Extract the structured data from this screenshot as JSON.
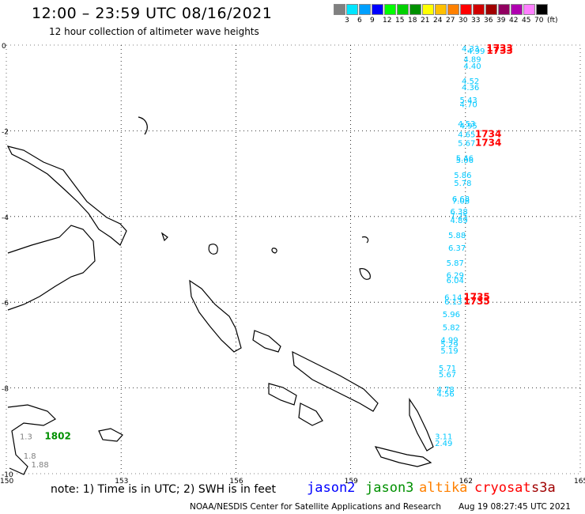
{
  "title": "12:00 – 23:59 UTC 08/16/2021",
  "subtitle": "12 hour collection of altimeter wave heights",
  "scale": {
    "colors": [
      "#808080",
      "#00e5ff",
      "#00a0ff",
      "#0000ff",
      "#00ff00",
      "#00d000",
      "#009000",
      "#ffff00",
      "#ffc000",
      "#ff8000",
      "#ff0000",
      "#d00000",
      "#a00000",
      "#900060",
      "#b000b0",
      "#ff80ff",
      "#000000"
    ],
    "labels": [
      "3",
      "6",
      "9",
      "12",
      "15",
      "18",
      "21",
      "24",
      "27",
      "30",
      "33",
      "36",
      "39",
      "42",
      "45",
      "70",
      "(ft)"
    ]
  },
  "axes": {
    "lat_labels": [
      "0",
      "-2",
      "-4",
      "-6",
      "-8",
      "-10"
    ],
    "lon_labels": [
      "150",
      "153",
      "156",
      "159",
      "162",
      "165"
    ]
  },
  "observations": [
    {
      "text": "4.33",
      "color": "#00c8ff",
      "lon": 161.9,
      "lat": -0.15
    },
    {
      "text": "4.99",
      "color": "#00c8ff",
      "lon": 162.05,
      "lat": -0.2
    },
    {
      "text": "4.89",
      "color": "#00c8ff",
      "lon": 161.95,
      "lat": -0.4
    },
    {
      "text": "4.40",
      "color": "#00c8ff",
      "lon": 161.95,
      "lat": -0.55
    },
    {
      "text": "4.52",
      "color": "#00c8ff",
      "lon": 161.9,
      "lat": -0.9
    },
    {
      "text": "4.36",
      "color": "#00c8ff",
      "lon": 161.9,
      "lat": -1.05
    },
    {
      "text": "5.43",
      "color": "#00c8ff",
      "lon": 161.85,
      "lat": -1.35
    },
    {
      "text": "4.70",
      "color": "#00c8ff",
      "lon": 161.85,
      "lat": -1.45
    },
    {
      "text": "4.53",
      "color": "#00c8ff",
      "lon": 161.8,
      "lat": -1.9
    },
    {
      "text": "4.95",
      "color": "#00c8ff",
      "lon": 161.85,
      "lat": -1.95
    },
    {
      "text": "4.65",
      "color": "#00c8ff",
      "lon": 161.8,
      "lat": -2.15
    },
    {
      "text": "5.67",
      "color": "#00c8ff",
      "lon": 161.8,
      "lat": -2.35
    },
    {
      "text": "5.46",
      "color": "#00c8ff",
      "lon": 161.75,
      "lat": -2.7
    },
    {
      "text": "5.06",
      "color": "#00c8ff",
      "lon": 161.75,
      "lat": -2.75
    },
    {
      "text": "5.86",
      "color": "#00c8ff",
      "lon": 161.7,
      "lat": -3.1
    },
    {
      "text": "5.78",
      "color": "#00c8ff",
      "lon": 161.7,
      "lat": -3.28
    },
    {
      "text": "6.68",
      "color": "#00c8ff",
      "lon": 161.65,
      "lat": -3.65
    },
    {
      "text": "7.08",
      "color": "#00c8ff",
      "lon": 161.65,
      "lat": -3.7
    },
    {
      "text": "6.38",
      "color": "#00c8ff",
      "lon": 161.6,
      "lat": -3.95
    },
    {
      "text": "7.25",
      "color": "#00c8ff",
      "lon": 161.6,
      "lat": -4.05
    },
    {
      "text": "4.89",
      "color": "#00c8ff",
      "lon": 161.6,
      "lat": -4.15
    },
    {
      "text": "5.88",
      "color": "#00c8ff",
      "lon": 161.55,
      "lat": -4.5
    },
    {
      "text": "6.37",
      "color": "#00c8ff",
      "lon": 161.55,
      "lat": -4.8
    },
    {
      "text": "5.87",
      "color": "#00c8ff",
      "lon": 161.5,
      "lat": -5.15
    },
    {
      "text": "6.29",
      "color": "#00c8ff",
      "lon": 161.5,
      "lat": -5.43
    },
    {
      "text": "6.04",
      "color": "#00c8ff",
      "lon": 161.5,
      "lat": -5.55
    },
    {
      "text": "6.14",
      "color": "#00c8ff",
      "lon": 161.45,
      "lat": -5.95
    },
    {
      "text": "6.13",
      "color": "#00c8ff",
      "lon": 161.45,
      "lat": -6.05
    },
    {
      "text": "5.96",
      "color": "#00c8ff",
      "lon": 161.4,
      "lat": -6.35
    },
    {
      "text": "5.82",
      "color": "#00c8ff",
      "lon": 161.4,
      "lat": -6.65
    },
    {
      "text": "4.99",
      "color": "#00c8ff",
      "lon": 161.35,
      "lat": -6.95
    },
    {
      "text": "5.29",
      "color": "#00c8ff",
      "lon": 161.35,
      "lat": -7.05
    },
    {
      "text": "5.19",
      "color": "#00c8ff",
      "lon": 161.35,
      "lat": -7.2
    },
    {
      "text": "5.71",
      "color": "#00c8ff",
      "lon": 161.3,
      "lat": -7.6
    },
    {
      "text": "5.67",
      "color": "#00c8ff",
      "lon": 161.3,
      "lat": -7.75
    },
    {
      "text": "4.78",
      "color": "#00c8ff",
      "lon": 161.25,
      "lat": -8.1
    },
    {
      "text": "4.56",
      "color": "#00c8ff",
      "lon": 161.25,
      "lat": -8.2
    },
    {
      "text": "3.11",
      "color": "#00c8ff",
      "lon": 161.2,
      "lat": -9.2
    },
    {
      "text": "2.49",
      "color": "#00c8ff",
      "lon": 161.2,
      "lat": -9.35
    },
    {
      "text": "1733",
      "color": "#ff0000",
      "lon": 162.55,
      "lat": -0.15
    },
    {
      "text": "1733",
      "color": "#ff0000",
      "lon": 162.55,
      "lat": -0.2
    },
    {
      "text": "1734",
      "color": "#ff0000",
      "lon": 162.25,
      "lat": -2.15
    },
    {
      "text": "1734",
      "color": "#ff0000",
      "lon": 162.25,
      "lat": -2.35
    },
    {
      "text": "1735",
      "color": "#ff0000",
      "lon": 161.95,
      "lat": -5.95
    },
    {
      "text": "1735",
      "color": "#ff0000",
      "lon": 161.95,
      "lat": -6.05
    },
    {
      "text": "1.3",
      "color": "#808080",
      "lon": 150.35,
      "lat": -9.2
    },
    {
      "text": "1802",
      "color": "#009000",
      "lon": 151.0,
      "lat": -9.2
    },
    {
      "text": "1.8",
      "color": "#808080",
      "lon": 150.45,
      "lat": -9.65
    },
    {
      "text": "1.88",
      "color": "#808080",
      "lon": 150.65,
      "lat": -9.85
    }
  ],
  "footer": {
    "note": "note: 1) Time is in UTC; 2) SWH is in feet",
    "legend": [
      {
        "label": "jason2",
        "color": "#0000ff"
      },
      {
        "label": "jason3",
        "color": "#009000"
      },
      {
        "label": "altika",
        "color": "#ff8000"
      },
      {
        "label": "cryosat",
        "color": "#ff0000"
      },
      {
        "label": "s3a",
        "color": "#a00000"
      }
    ],
    "credit": "NOAA/NESDIS Center for Satellite Applications and Research",
    "timestamp": "Aug 19 08:27:45 UTC 2021"
  }
}
